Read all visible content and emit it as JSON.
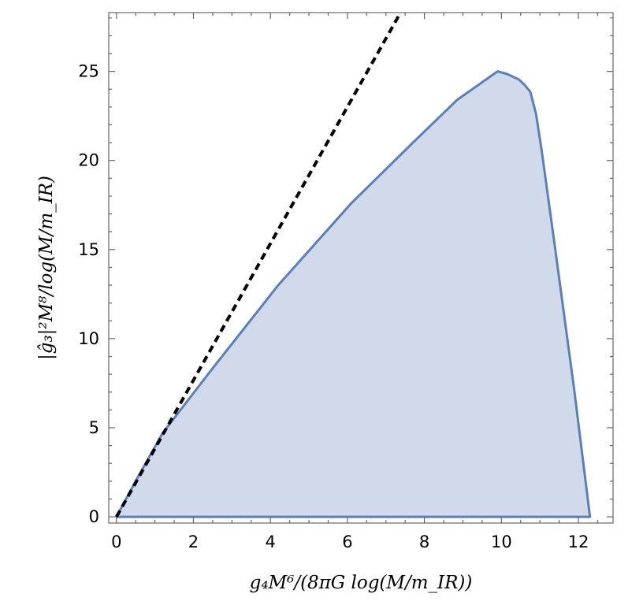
{
  "chart_data": {
    "type": "area",
    "title": "",
    "xlabel": "g₄M⁶/(8πG log(M/m_IR))",
    "ylabel": "|ĝ₃|²M⁸/log(M/m_IR)",
    "xlim": [
      -0.2,
      12.9
    ],
    "ylim": [
      -0.35,
      28.3
    ],
    "xticks": [
      0,
      2,
      4,
      6,
      8,
      10,
      12
    ],
    "yticks": [
      0,
      5,
      10,
      15,
      20,
      25
    ],
    "grid": false,
    "series": [
      {
        "kind": "region-boundary",
        "fill": "#d0daea",
        "stroke": "#5b7fbb",
        "x": [
          0,
          0.55,
          1.2,
          2.45,
          4.2,
          6.1,
          7.7,
          8.85,
          9.9,
          10.15,
          10.45,
          10.6,
          10.75,
          10.9,
          11.05,
          11.4,
          11.9,
          12.3,
          0
        ],
        "y": [
          0,
          2.2,
          4.7,
          8.2,
          13.0,
          17.6,
          21.0,
          23.4,
          25.0,
          24.85,
          24.55,
          24.25,
          23.85,
          22.6,
          20.5,
          15.0,
          7.0,
          0,
          0
        ]
      },
      {
        "kind": "dashed-line",
        "stroke": "#000000",
        "x": [
          0,
          7.38
        ],
        "y": [
          0,
          28.3
        ]
      }
    ]
  }
}
